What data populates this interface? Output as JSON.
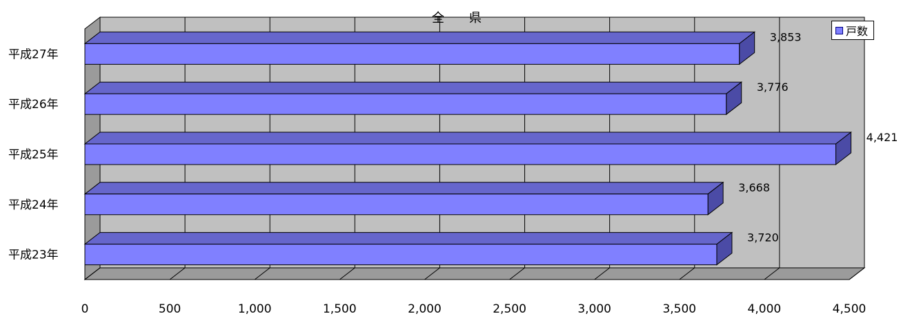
{
  "chart_data": {
    "type": "bar",
    "orientation": "horizontal",
    "title": "全　　県",
    "categories": [
      "平成27年",
      "平成26年",
      "平成25年",
      "平成24年",
      "平成23年"
    ],
    "series": [
      {
        "name": "戸数",
        "values": [
          3853,
          3776,
          4421,
          3668,
          3720
        ],
        "value_labels": [
          "3,853",
          "3,776",
          "4,421",
          "3,668",
          "3,720"
        ],
        "color": "#8080ff"
      }
    ],
    "x_ticks": [
      0,
      500,
      1000,
      1500,
      2000,
      2500,
      3000,
      3500,
      4000,
      4500
    ],
    "x_tick_labels": [
      "0",
      "500",
      "1,000",
      "1,500",
      "2,000",
      "2,500",
      "3,000",
      "3,500",
      "4,000",
      "4,500"
    ],
    "xlim": [
      0,
      4500
    ],
    "grid": true,
    "legend_position": "top-right",
    "colors": {
      "bar_face": "#8080ff",
      "bar_top": "#6666cc",
      "bar_side": "#4b4ba6",
      "wall": "#c0c0c0",
      "floor": "#9b9b9b"
    }
  }
}
